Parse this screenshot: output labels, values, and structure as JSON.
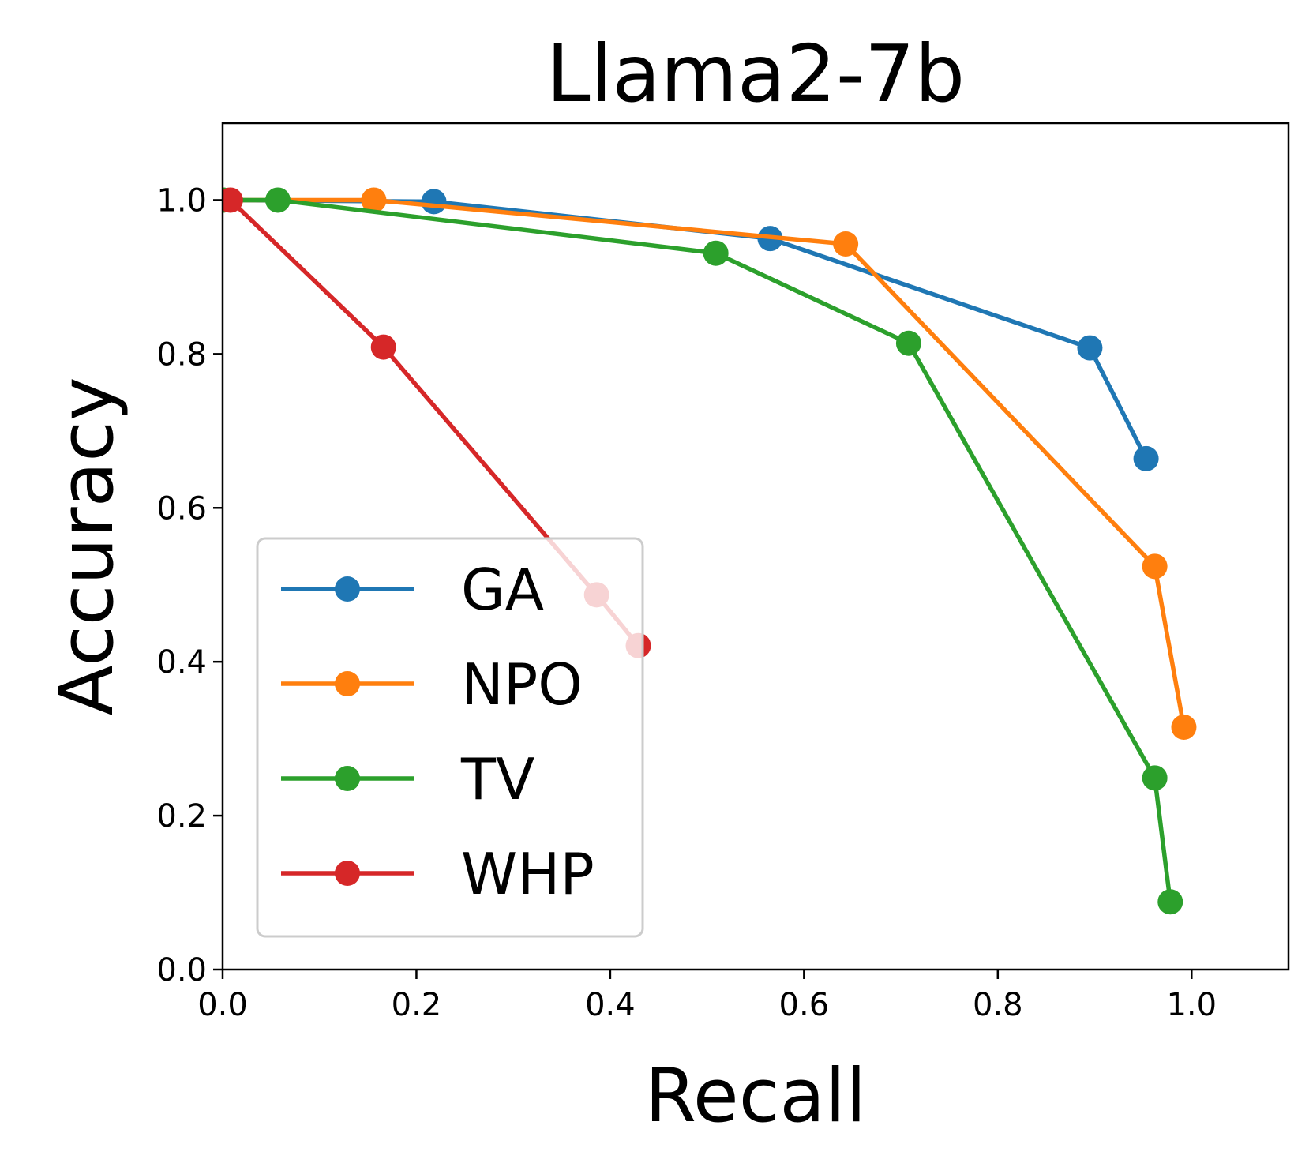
{
  "chart_data": {
    "type": "line",
    "title": "Llama2-7b",
    "xlabel": "Recall",
    "ylabel": "Accuracy",
    "xlim": [
      0.0,
      1.1
    ],
    "ylim": [
      0.0,
      1.1
    ],
    "xticks": [
      "0.0",
      "0.2",
      "0.4",
      "0.6",
      "0.8",
      "1.0"
    ],
    "yticks": [
      "0.0",
      "0.2",
      "0.4",
      "0.6",
      "0.8",
      "1.0"
    ],
    "grid": false,
    "legend_position": "lower-left",
    "series": [
      {
        "name": "GA",
        "color": "#1f77b4",
        "x": [
          0.0,
          0.218,
          0.565,
          0.895,
          0.953
        ],
        "y": [
          1.0,
          0.998,
          0.95,
          0.808,
          0.664
        ]
      },
      {
        "name": "NPO",
        "color": "#ff7f0e",
        "x": [
          0.0,
          0.156,
          0.643,
          0.962,
          0.992
        ],
        "y": [
          1.0,
          1.0,
          0.943,
          0.524,
          0.315
        ]
      },
      {
        "name": "TV",
        "color": "#2ca02c",
        "x": [
          0.0,
          0.057,
          0.509,
          0.708,
          0.962,
          0.978
        ],
        "y": [
          1.0,
          1.0,
          0.931,
          0.814,
          0.249,
          0.088
        ]
      },
      {
        "name": "WHP",
        "color": "#d62728",
        "x": [
          0.008,
          0.166,
          0.386,
          0.429
        ],
        "y": [
          1.0,
          0.809,
          0.487,
          0.421
        ]
      }
    ]
  }
}
